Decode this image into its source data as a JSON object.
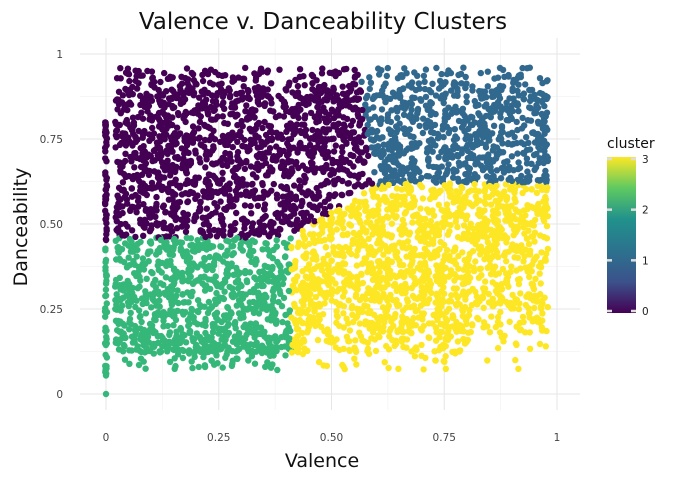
{
  "chart_data": {
    "type": "scatter",
    "title": "Valence v. Danceability Clusters",
    "xlabel": "Valence",
    "ylabel": "Danceability",
    "xlim": [
      -0.05,
      1.05
    ],
    "ylim": [
      -0.05,
      1.02
    ],
    "x_ticks": [
      "0",
      "0.25",
      "0.50",
      "0.75",
      "1"
    ],
    "y_ticks": [
      "0",
      "0.25",
      "0.50",
      "0.75",
      "1"
    ],
    "grid": true,
    "legend": {
      "title": "cluster",
      "placement": "right",
      "kind": "continuous-colorbar",
      "range": [
        0,
        3
      ],
      "ticks": [
        "0",
        "1",
        "2",
        "3"
      ],
      "colors": [
        "#440154",
        "#31688e",
        "#35b779",
        "#fde725"
      ]
    },
    "clusters": [
      {
        "cluster": 0,
        "color": "#440154",
        "region": "low-to-mid valence, high danceability",
        "x_range": [
          0.0,
          0.6
        ],
        "y_range": [
          0.45,
          0.98
        ]
      },
      {
        "cluster": 1,
        "color": "#31688e",
        "region": "high valence, high danceability",
        "x_range": [
          0.58,
          0.99
        ],
        "y_range": [
          0.54,
          0.99
        ]
      },
      {
        "cluster": 2,
        "color": "#35b779",
        "region": "low valence, low danceability",
        "x_range": [
          0.0,
          0.41
        ],
        "y_range": [
          0.0,
          0.48
        ]
      },
      {
        "cluster": 3,
        "color": "#fde725",
        "region": "mid-to-high valence, low-to-mid danceability",
        "x_range": [
          0.4,
          0.99
        ],
        "y_range": [
          0.07,
          0.62
        ]
      }
    ]
  }
}
